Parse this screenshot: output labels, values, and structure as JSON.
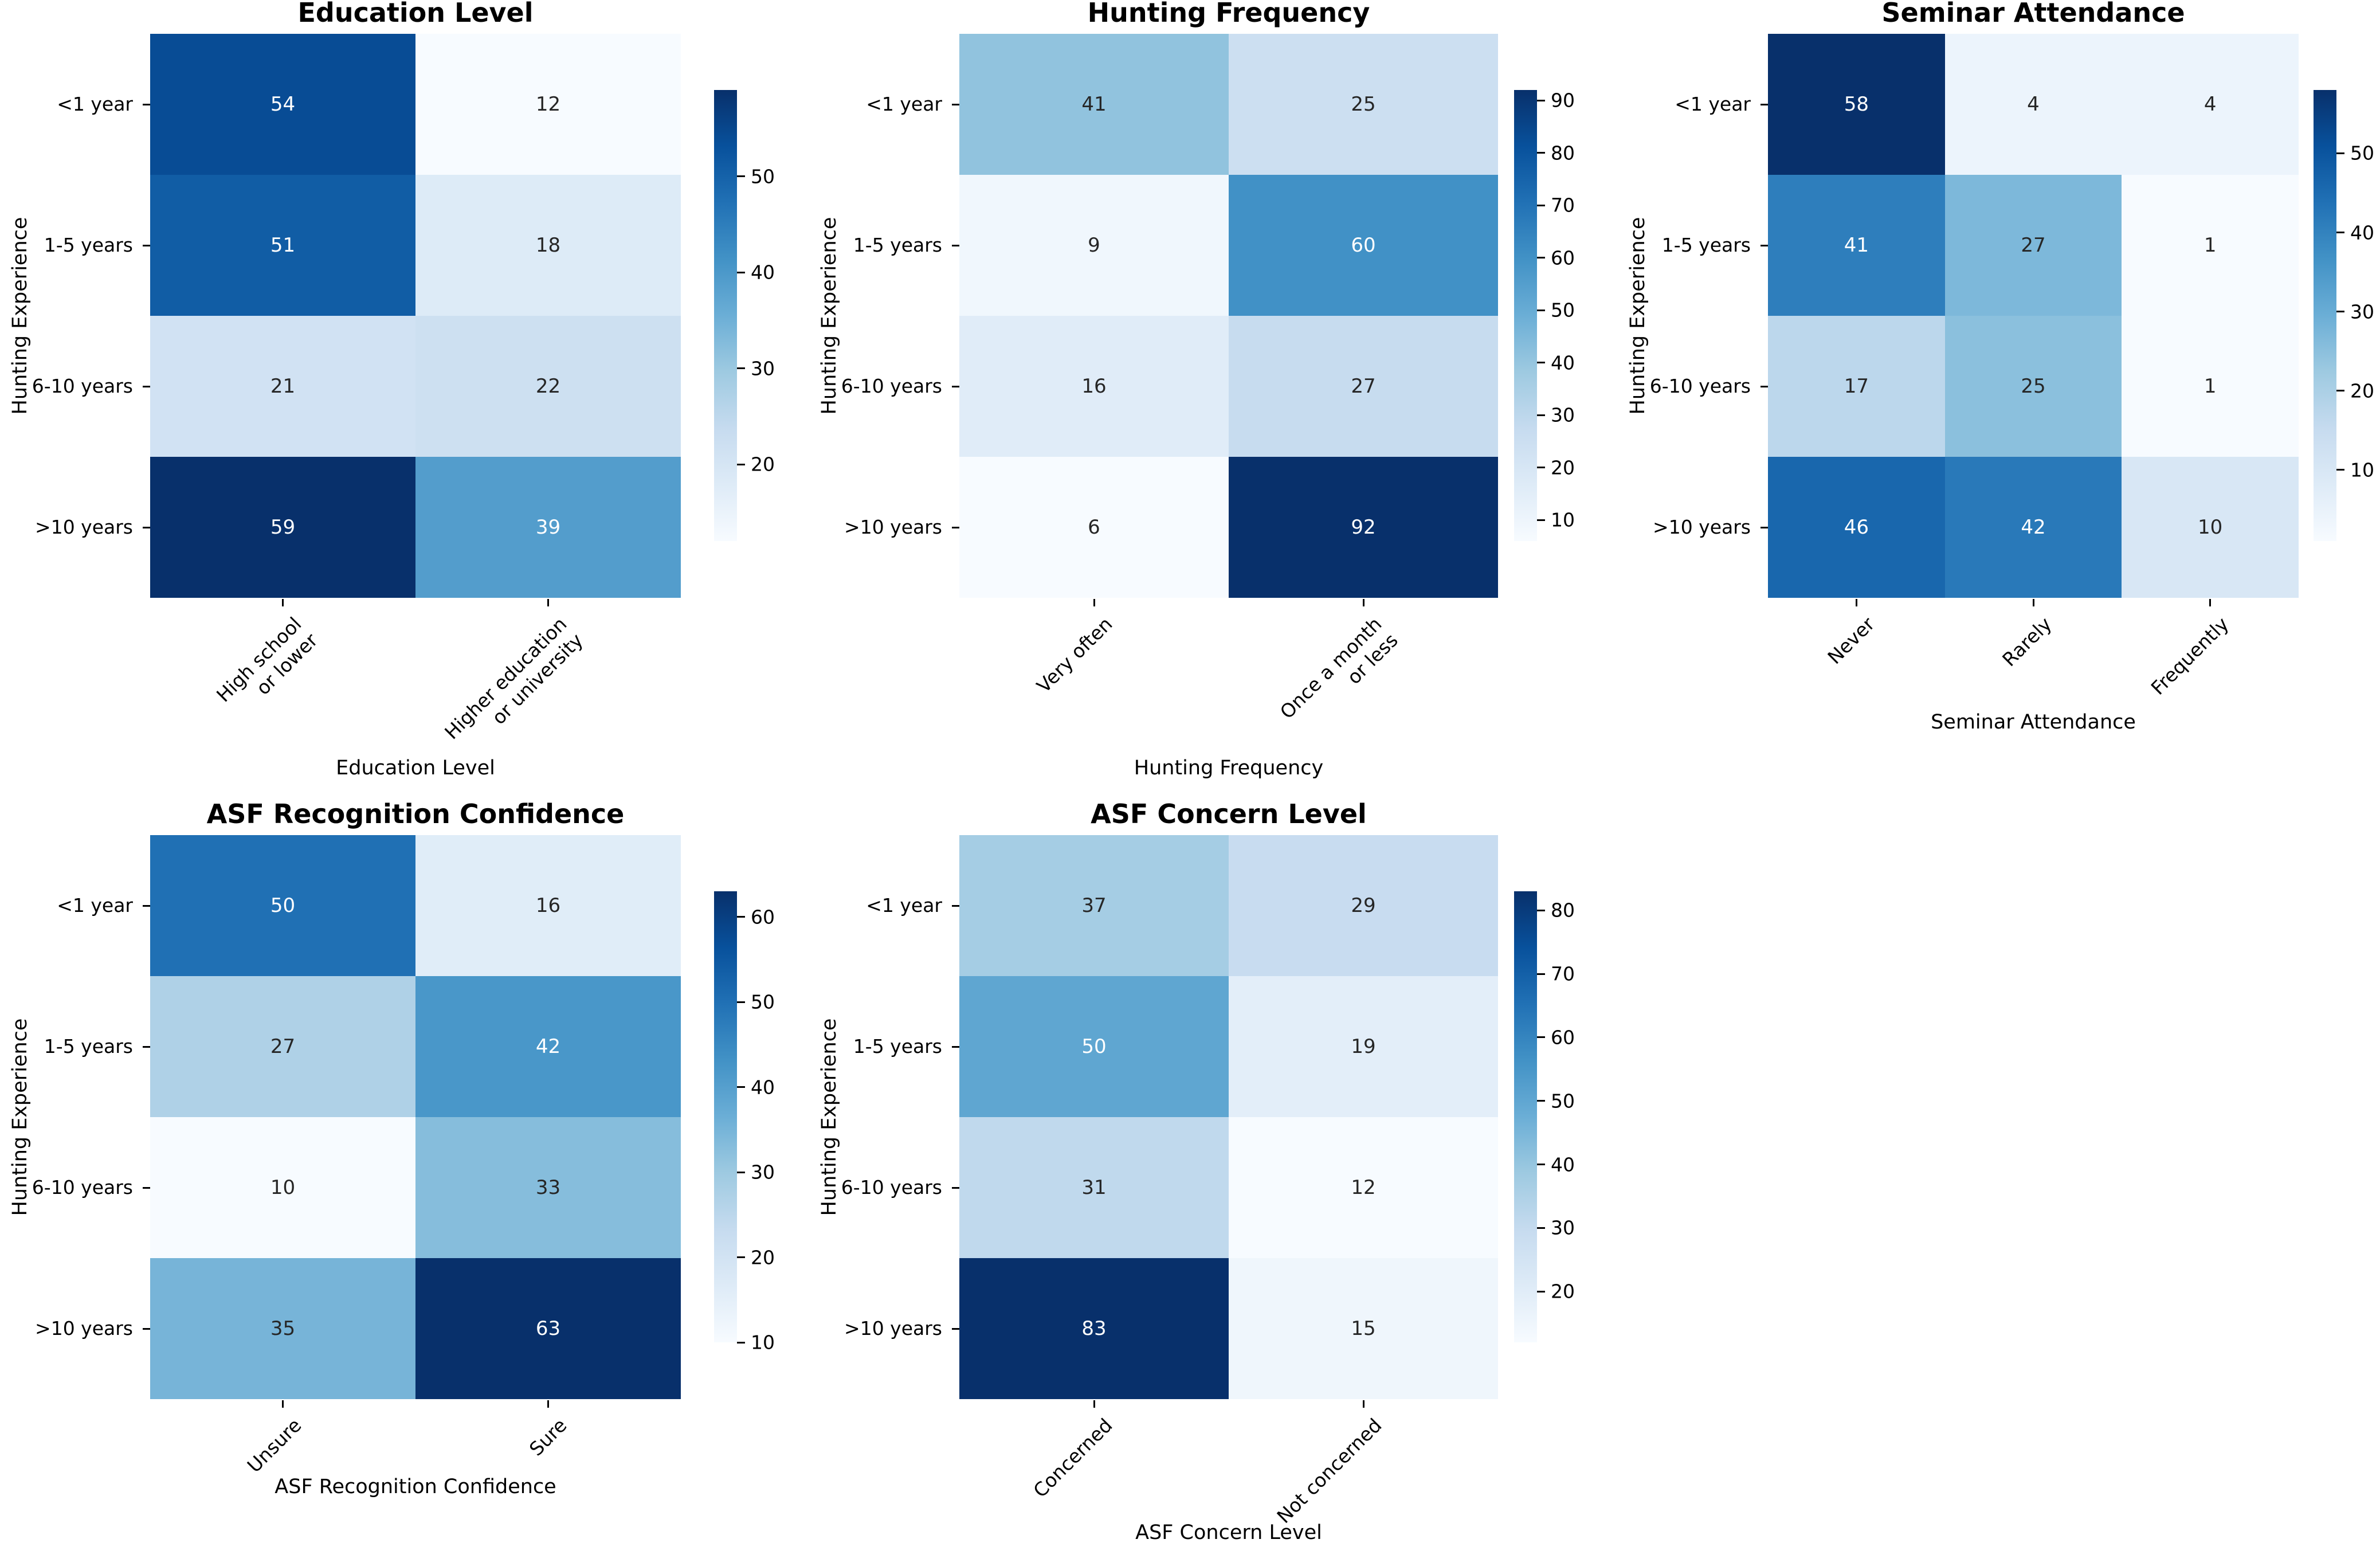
{
  "figure": {
    "background": "#ffffff"
  },
  "colors": {
    "colormap_name": "Blues",
    "blues_anchors": [
      "#f7fbff",
      "#deebf7",
      "#c6dbef",
      "#9ecae1",
      "#6baed6",
      "#4292c6",
      "#2171b5",
      "#08519c",
      "#08306b"
    ],
    "annotation_dark_text": "#262626",
    "annotation_light_text": "#ffffff",
    "tick_text": "#000000"
  },
  "chart_data": [
    {
      "type": "heatmap",
      "title": "Education Level",
      "xlabel": "Education Level",
      "ylabel": "Hunting Experience",
      "x_categories": [
        "High school\nor lower",
        "Higher education\nor university"
      ],
      "y_categories": [
        "<1 year",
        "1-5 years",
        "6-10 years",
        ">10 years"
      ],
      "values": [
        [
          54,
          12
        ],
        [
          51,
          18
        ],
        [
          21,
          22
        ],
        [
          59,
          39
        ]
      ],
      "vmin": 12,
      "vmax": 59,
      "colorbar_ticks": [
        20,
        30,
        40,
        50
      ],
      "legend_position": "right"
    },
    {
      "type": "heatmap",
      "title": "Hunting Frequency",
      "xlabel": "Hunting Frequency",
      "ylabel": "Hunting Experience",
      "x_categories": [
        "Very often",
        "Once a month\nor less"
      ],
      "y_categories": [
        "<1 year",
        "1-5 years",
        "6-10 years",
        ">10 years"
      ],
      "values": [
        [
          41,
          25
        ],
        [
          9,
          60
        ],
        [
          16,
          27
        ],
        [
          6,
          92
        ]
      ],
      "vmin": 6,
      "vmax": 92,
      "colorbar_ticks": [
        10,
        20,
        30,
        40,
        50,
        60,
        70,
        80,
        90
      ],
      "legend_position": "right"
    },
    {
      "type": "heatmap",
      "title": "Seminar Attendance",
      "xlabel": "Seminar Attendance",
      "ylabel": "Hunting Experience",
      "x_categories": [
        "Never",
        "Rarely",
        "Frequently"
      ],
      "y_categories": [
        "<1 year",
        "1-5 years",
        "6-10 years",
        ">10 years"
      ],
      "values": [
        [
          58,
          4,
          4
        ],
        [
          41,
          27,
          1
        ],
        [
          17,
          25,
          1
        ],
        [
          46,
          42,
          10
        ]
      ],
      "vmin": 1,
      "vmax": 58,
      "colorbar_ticks": [
        10,
        20,
        30,
        40,
        50
      ],
      "legend_position": "right"
    },
    {
      "type": "heatmap",
      "title": "ASF Recognition Confidence",
      "xlabel": "ASF Recognition Confidence",
      "ylabel": "Hunting Experience",
      "x_categories": [
        "Unsure",
        "Sure"
      ],
      "y_categories": [
        "<1 year",
        "1-5 years",
        "6-10 years",
        ">10 years"
      ],
      "values": [
        [
          50,
          16
        ],
        [
          27,
          42
        ],
        [
          10,
          33
        ],
        [
          35,
          63
        ]
      ],
      "vmin": 10,
      "vmax": 63,
      "colorbar_ticks": [
        10,
        20,
        30,
        40,
        50,
        60
      ],
      "legend_position": "right"
    },
    {
      "type": "heatmap",
      "title": "ASF Concern Level",
      "xlabel": "ASF Concern Level",
      "ylabel": "Hunting Experience",
      "x_categories": [
        "Concerned",
        "Not concerned"
      ],
      "y_categories": [
        "<1 year",
        "1-5 years",
        "6-10 years",
        ">10 years"
      ],
      "values": [
        [
          37,
          29
        ],
        [
          50,
          19
        ],
        [
          31,
          12
        ],
        [
          83,
          15
        ]
      ],
      "vmin": 12,
      "vmax": 83,
      "colorbar_ticks": [
        20,
        30,
        40,
        50,
        60,
        70,
        80
      ],
      "legend_position": "right"
    }
  ]
}
